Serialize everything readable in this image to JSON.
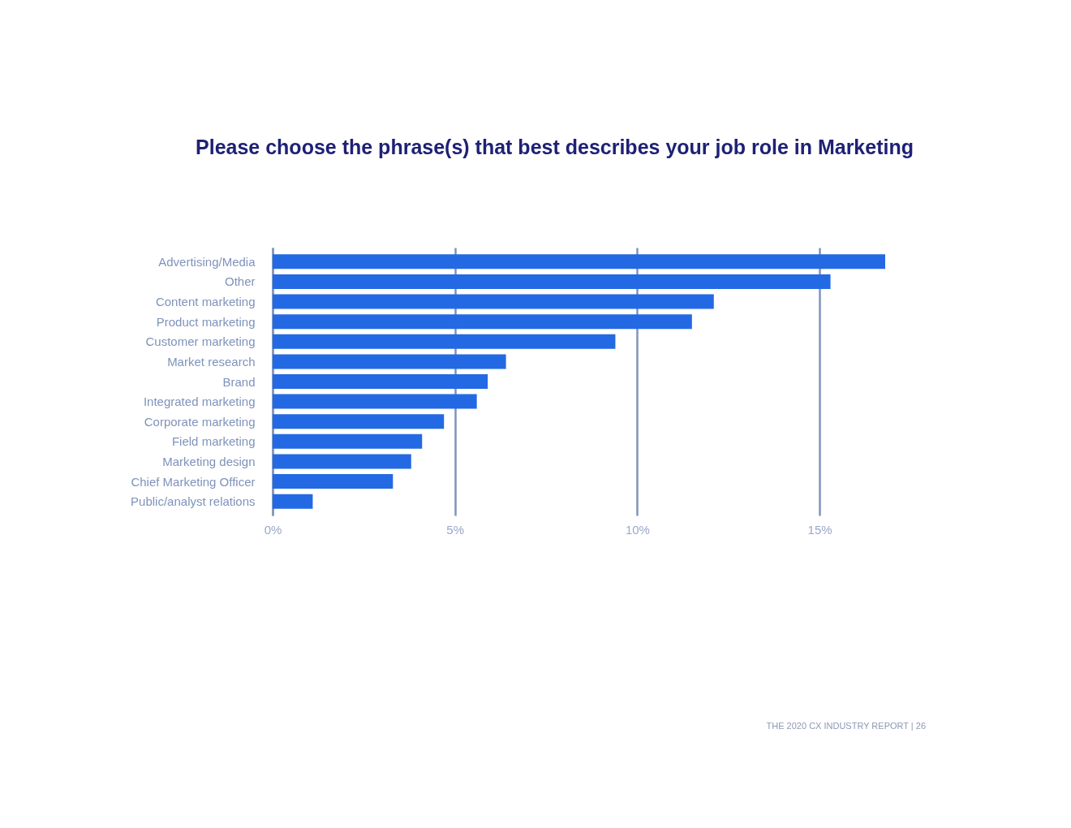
{
  "chart_data": {
    "type": "bar",
    "orientation": "horizontal",
    "title": "Please choose the phrase(s) that best describes your job role in Marketing",
    "categories": [
      "Advertising/Media",
      "Other",
      "Content marketing",
      "Product marketing",
      "Customer marketing",
      "Market research",
      "Brand",
      "Integrated marketing",
      "Corporate marketing",
      "Field marketing",
      "Marketing design",
      "Chief Marketing Officer",
      "Public/analyst relations"
    ],
    "values": [
      16.8,
      15.3,
      12.1,
      11.5,
      9.4,
      6.4,
      5.9,
      5.6,
      4.7,
      4.1,
      3.8,
      3.3,
      1.1
    ],
    "color": "#2469e4",
    "xticks": [
      {
        "value": 0,
        "label": "0%"
      },
      {
        "value": 5,
        "label": "5%"
      },
      {
        "value": 10,
        "label": "10%"
      },
      {
        "value": 15,
        "label": "15%"
      }
    ],
    "xlim": [
      0,
      16.8
    ],
    "grid": "x",
    "annotations": [
      "THE 2020 CX INDUSTRY REPORT   |  26"
    ]
  }
}
